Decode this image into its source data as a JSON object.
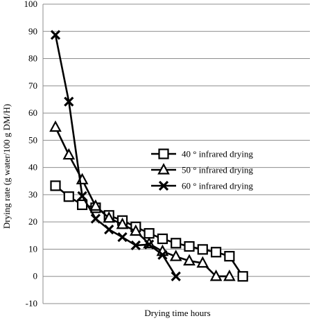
{
  "chart_data": {
    "type": "line",
    "title": "",
    "xlabel": "Drying time hours",
    "ylabel": "Drying rate (g water/100 g DM/H)",
    "ylim": [
      -10,
      100
    ],
    "yticks": [
      "100",
      "90",
      "80",
      "70",
      "60",
      "50",
      "40",
      "30",
      "20",
      "10",
      "0",
      "-10"
    ],
    "grid": "horizontal",
    "legend_position": "right-middle",
    "series": [
      {
        "name": "40 ° infrared drying",
        "marker": "square",
        "color": "#000000",
        "x": [
          1,
          2,
          3,
          4,
          5,
          6,
          7,
          8,
          9,
          10,
          11,
          12,
          13,
          14,
          15
        ],
        "values": [
          33.3,
          29.3,
          26.3,
          25.2,
          22.4,
          20.5,
          18.2,
          15.8,
          13.8,
          12.2,
          11.0,
          9.9,
          8.9,
          7.4,
          0
        ]
      },
      {
        "name": "50 ° infrared drying",
        "marker": "triangle",
        "color": "#000000",
        "x": [
          1,
          2,
          3,
          4,
          5,
          6,
          7,
          8,
          9,
          10,
          11,
          12,
          13,
          14
        ],
        "values": [
          54.8,
          44.6,
          35.5,
          25.8,
          21.4,
          19.1,
          16.6,
          12.0,
          9.2,
          7.3,
          5.7,
          4.9,
          0,
          0
        ]
      },
      {
        "name": "60 ° infrared drying",
        "marker": "x",
        "color": "#000000",
        "x": [
          1,
          2,
          3,
          4,
          5,
          6,
          7,
          8,
          9,
          10
        ],
        "values": [
          88.7,
          64.2,
          29.5,
          21.2,
          17.2,
          14.4,
          11.4,
          11.7,
          7.9,
          0
        ]
      }
    ]
  }
}
